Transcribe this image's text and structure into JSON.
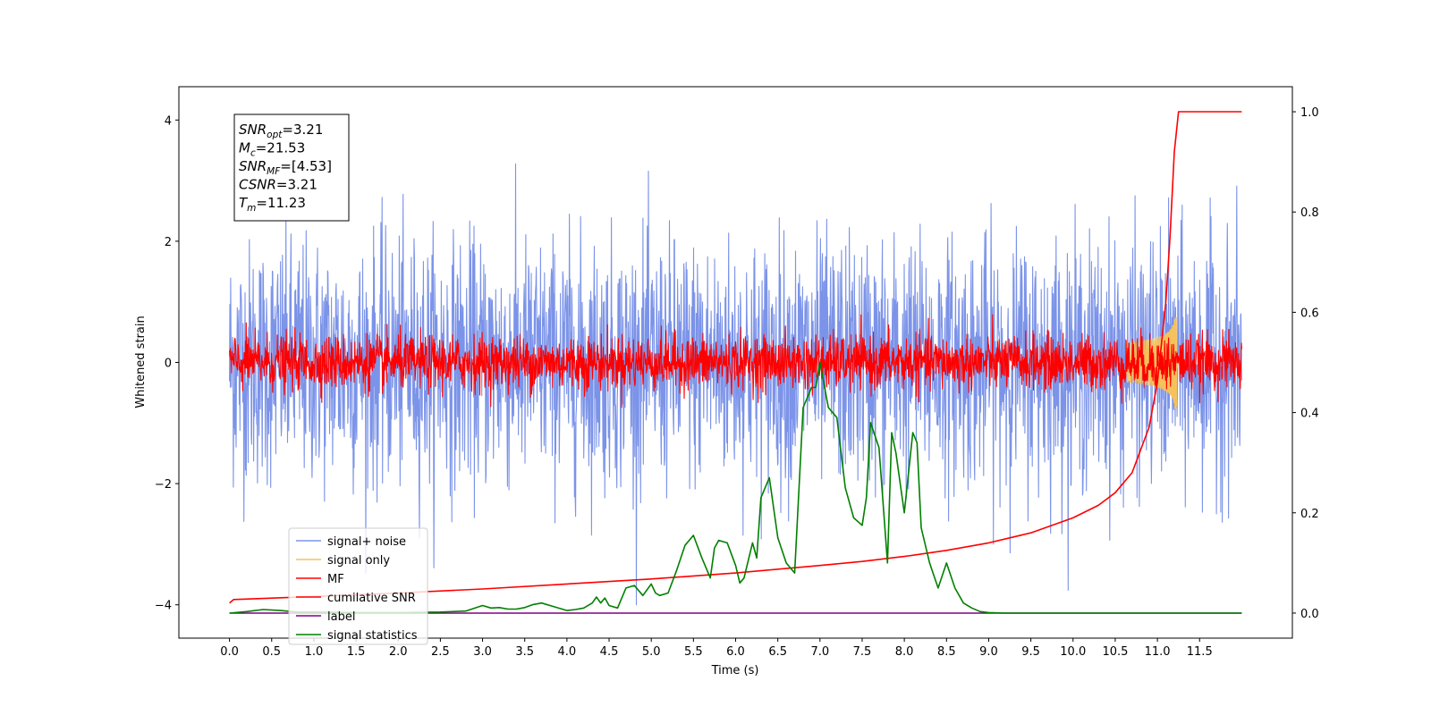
{
  "chart_data": {
    "type": "line",
    "title": "",
    "xlabel": "Time (s)",
    "ylabel": "Whitened strain",
    "xlim": [
      -0.6,
      12.6
    ],
    "ylim": [
      -4.55,
      4.55
    ],
    "y2lim": [
      -0.05,
      1.05
    ],
    "x_ticks": [
      "0.0",
      "0.5",
      "1.0",
      "1.5",
      "2.0",
      "2.5",
      "3.0",
      "3.5",
      "4.0",
      "4.5",
      "5.0",
      "5.5",
      "6.0",
      "6.5",
      "7.0",
      "7.5",
      "8.0",
      "8.5",
      "9.0",
      "9.5",
      "10.0",
      "10.5",
      "11.0",
      "11.5"
    ],
    "y_ticks": [
      "4",
      "2",
      "0",
      "−2",
      "−4"
    ],
    "y2_ticks": [
      "1.0",
      "0.8",
      "0.6",
      "0.4",
      "0.2",
      "0.0"
    ],
    "info_box": [
      {
        "main": "SNR",
        "sub": "opt",
        "value": "=3.21"
      },
      {
        "main": "M",
        "sub": "c",
        "value": "=21.53"
      },
      {
        "main": "SNR",
        "sub": "MF",
        "value": "=[4.53]"
      },
      {
        "main": "CSNR",
        "sub": "",
        "value": "=3.21"
      },
      {
        "main": "T",
        "sub": "m",
        "value": "=11.23"
      }
    ],
    "legend_position": "lower-left",
    "series": [
      {
        "name": "signal+ noise",
        "color": "#7b93e8",
        "axis": "left",
        "kind": "noise",
        "x_range": [
          0,
          12
        ],
        "sigma": 1.0,
        "peak_abs": 4.0
      },
      {
        "name": "signal only",
        "color": "#f5c25c",
        "axis": "left",
        "kind": "chirp",
        "merger_time": 11.23,
        "peak_amplitude": 0.75
      },
      {
        "name": "MF",
        "color": "#ff0000",
        "axis": "left",
        "kind": "noise",
        "x_range": [
          0,
          12
        ],
        "sigma": 0.22,
        "peak_abs": 0.9
      },
      {
        "name": "cumilative SNR",
        "color": "#ff0000",
        "axis": "right",
        "x": [
          0,
          0.05,
          1,
          2,
          3,
          4,
          5,
          6,
          7,
          7.5,
          8,
          8.5,
          9,
          9.5,
          10,
          10.3,
          10.5,
          10.7,
          10.9,
          11.0,
          11.1,
          11.15,
          11.2,
          11.25,
          11.4,
          11.6,
          12.0
        ],
        "values": [
          0.02,
          0.027,
          0.033,
          0.04,
          0.048,
          0.058,
          0.068,
          0.08,
          0.095,
          0.103,
          0.113,
          0.125,
          0.14,
          0.16,
          0.19,
          0.215,
          0.24,
          0.28,
          0.37,
          0.46,
          0.62,
          0.75,
          0.92,
          1.0,
          1.0,
          1.0,
          1.0
        ]
      },
      {
        "name": "label",
        "color": "#800080",
        "axis": "right",
        "x": [
          0,
          12
        ],
        "values": [
          0.0,
          0.0
        ]
      },
      {
        "name": "signal statistics",
        "color": "#008000",
        "axis": "right",
        "x": [
          0,
          0.2,
          0.4,
          0.6,
          0.8,
          1.0,
          1.5,
          2.0,
          2.5,
          2.8,
          3.0,
          3.1,
          3.2,
          3.3,
          3.4,
          3.5,
          3.6,
          3.7,
          3.8,
          4.0,
          4.1,
          4.2,
          4.3,
          4.35,
          4.4,
          4.45,
          4.5,
          4.6,
          4.7,
          4.8,
          4.9,
          5.0,
          5.05,
          5.1,
          5.2,
          5.3,
          5.4,
          5.5,
          5.6,
          5.7,
          5.75,
          5.8,
          5.9,
          6.0,
          6.05,
          6.1,
          6.2,
          6.25,
          6.3,
          6.4,
          6.5,
          6.6,
          6.7,
          6.8,
          6.9,
          6.95,
          7.0,
          7.1,
          7.2,
          7.3,
          7.4,
          7.5,
          7.55,
          7.6,
          7.7,
          7.8,
          7.85,
          7.9,
          8.0,
          8.1,
          8.15,
          8.2,
          8.3,
          8.4,
          8.5,
          8.6,
          8.7,
          8.8,
          8.9,
          9.0,
          9.2,
          9.5,
          10.0,
          11.0,
          12.0
        ],
        "values": [
          0.0,
          0.003,
          0.007,
          0.005,
          0.002,
          0.002,
          0.001,
          0.001,
          0.002,
          0.004,
          0.015,
          0.01,
          0.011,
          0.008,
          0.008,
          0.011,
          0.017,
          0.02,
          0.015,
          0.005,
          0.007,
          0.01,
          0.02,
          0.032,
          0.02,
          0.03,
          0.015,
          0.01,
          0.05,
          0.055,
          0.035,
          0.058,
          0.04,
          0.035,
          0.04,
          0.085,
          0.135,
          0.155,
          0.11,
          0.07,
          0.13,
          0.145,
          0.14,
          0.095,
          0.06,
          0.07,
          0.14,
          0.11,
          0.23,
          0.27,
          0.15,
          0.1,
          0.08,
          0.41,
          0.45,
          0.45,
          0.5,
          0.41,
          0.39,
          0.25,
          0.19,
          0.175,
          0.23,
          0.38,
          0.33,
          0.1,
          0.36,
          0.32,
          0.2,
          0.36,
          0.34,
          0.17,
          0.1,
          0.05,
          0.1,
          0.05,
          0.02,
          0.01,
          0.003,
          0.001,
          0.0,
          0.0,
          0.0,
          0.0,
          0.0
        ]
      }
    ]
  }
}
